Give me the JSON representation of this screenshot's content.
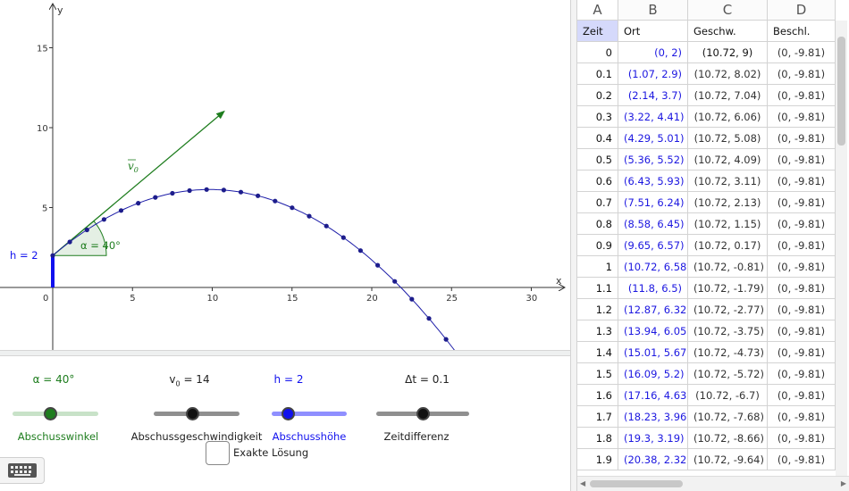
{
  "graphics": {
    "axis_x_label": "x",
    "axis_y_label": "y",
    "x_ticks": [
      "0",
      "5",
      "10",
      "15",
      "20",
      "25",
      "30"
    ],
    "y_ticks": [
      "5",
      "10",
      "15"
    ],
    "height_label": "h = 2",
    "angle_label": "α = 40°",
    "vector_label": "v",
    "vector_subscript": "0",
    "colors": {
      "trajectory": "#1d1da8",
      "vector": "#1e7d1e",
      "angle": "#1e7d1e",
      "height": "#1111ee"
    }
  },
  "sliders": [
    {
      "value_label": "α = 40°",
      "caption": "Abschusswinkel",
      "color": "#1e7d1e",
      "level": 0.35
    },
    {
      "value_label": "v",
      "value_sub": "0",
      "value_rest": " = 14",
      "caption": "Abschussgeschwindigkeit",
      "color": "#333333",
      "level": 0.45
    },
    {
      "value_label": "h = 2",
      "caption": "Abschusshöhe",
      "color": "#1111ee",
      "level": 0.2
    },
    {
      "value_label": "Δt = 0.1",
      "caption": "Zeitdifferenz",
      "color": "#333333",
      "level": 0.5
    }
  ],
  "checkbox": {
    "label": "Exakte Lösung",
    "checked": false
  },
  "keyboard_icon": "keyboard-icon",
  "sheet": {
    "columns": [
      "A",
      "B",
      "C",
      "D"
    ],
    "headers": [
      "Zeit",
      "Ort",
      "Geschw.",
      "Beschl."
    ],
    "rows": [
      [
        "0",
        "(0, 2)",
        "(10.72, 9)",
        "(0, -9.81)"
      ],
      [
        "0.1",
        "(1.07, 2.9)",
        "(10.72, 8.02)",
        "(0, -9.81)"
      ],
      [
        "0.2",
        "(2.14, 3.7)",
        "(10.72, 7.04)",
        "(0, -9.81)"
      ],
      [
        "0.3",
        "(3.22, 4.41)",
        "(10.72, 6.06)",
        "(0, -9.81)"
      ],
      [
        "0.4",
        "(4.29, 5.01)",
        "(10.72, 5.08)",
        "(0, -9.81)"
      ],
      [
        "0.5",
        "(5.36, 5.52)",
        "(10.72, 4.09)",
        "(0, -9.81)"
      ],
      [
        "0.6",
        "(6.43, 5.93)",
        "(10.72, 3.11)",
        "(0, -9.81)"
      ],
      [
        "0.7",
        "(7.51, 6.24)",
        "(10.72, 2.13)",
        "(0, -9.81)"
      ],
      [
        "0.8",
        "(8.58, 6.45)",
        "(10.72, 1.15)",
        "(0, -9.81)"
      ],
      [
        "0.9",
        "(9.65, 6.57)",
        "(10.72, 0.17)",
        "(0, -9.81)"
      ],
      [
        "1",
        "(10.72, 6.58)",
        "(10.72, -0.81)",
        "(0, -9.81)"
      ],
      [
        "1.1",
        "(11.8, 6.5)",
        "(10.72, -1.79)",
        "(0, -9.81)"
      ],
      [
        "1.2",
        "(12.87, 6.32)",
        "(10.72, -2.77)",
        "(0, -9.81)"
      ],
      [
        "1.3",
        "(13.94, 6.05)",
        "(10.72, -3.75)",
        "(0, -9.81)"
      ],
      [
        "1.4",
        "(15.01, 5.67)",
        "(10.72, -4.73)",
        "(0, -9.81)"
      ],
      [
        "1.5",
        "(16.09, 5.2)",
        "(10.72, -5.72)",
        "(0, -9.81)"
      ],
      [
        "1.6",
        "(17.16, 4.63)",
        "(10.72, -6.7)",
        "(0, -9.81)"
      ],
      [
        "1.7",
        "(18.23, 3.96)",
        "(10.72, -7.68)",
        "(0, -9.81)"
      ],
      [
        "1.8",
        "(19.3, 3.19)",
        "(10.72, -8.66)",
        "(0, -9.81)"
      ],
      [
        "1.9",
        "(20.38, 2.32)",
        "(10.72, -9.64)",
        "(0, -9.81)"
      ]
    ]
  }
}
